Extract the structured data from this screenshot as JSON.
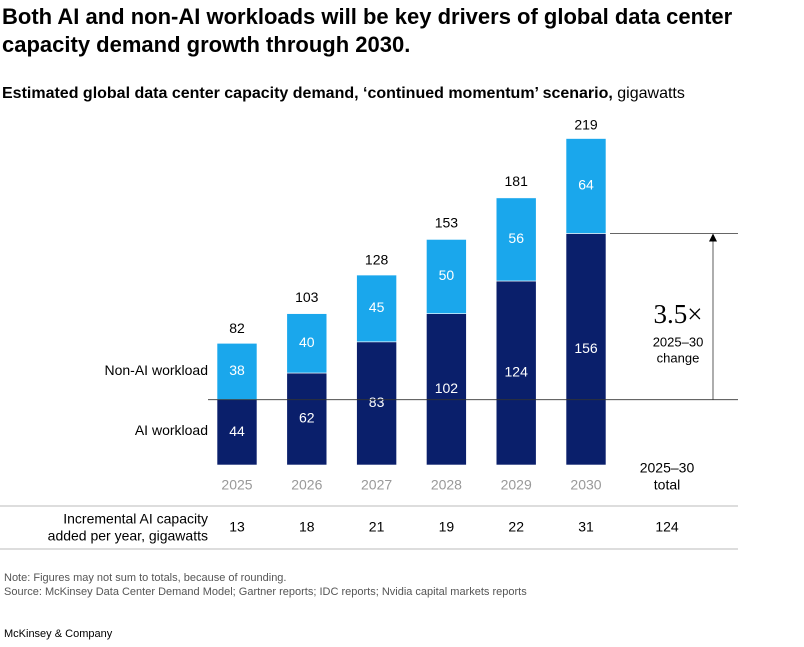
{
  "chart_data": {
    "type": "stacked_bar",
    "title": [
      "Both AI and non-AI workloads will be key drivers of global data center",
      "capacity demand growth through 2030."
    ],
    "subtitle": "Estimated global data center capacity demand, ‘continued momentum’ scenario,",
    "subtitle_unit": "gigawatts",
    "categories": [
      "2025",
      "2026",
      "2027",
      "2028",
      "2029",
      "2030"
    ],
    "series": [
      {
        "name": "AI workload",
        "color": "#0a1f6b",
        "values": [
          44,
          62,
          83,
          102,
          124,
          156
        ]
      },
      {
        "name": "Non-AI workload",
        "color": "#1aa7ec",
        "values": [
          38,
          40,
          45,
          50,
          56,
          64
        ]
      }
    ],
    "totals": [
      82,
      103,
      128,
      153,
      181,
      219
    ],
    "annotation": {
      "multiple": "3.5×",
      "label": [
        "2025–30",
        "change"
      ]
    },
    "incremental": {
      "row_label": [
        "Incremental AI capacity",
        "added per year, gigawatts"
      ],
      "values": [
        13,
        18,
        21,
        19,
        22,
        31
      ],
      "total_header": [
        "2025–30",
        "total"
      ],
      "total": 124
    },
    "note": "Note: Figures may not sum to totals, because of rounding.",
    "source": "Source: McKinsey Data Center Demand Model; Gartner reports; IDC reports; Nvidia capital markets reports",
    "footer": "McKinsey & Company"
  }
}
